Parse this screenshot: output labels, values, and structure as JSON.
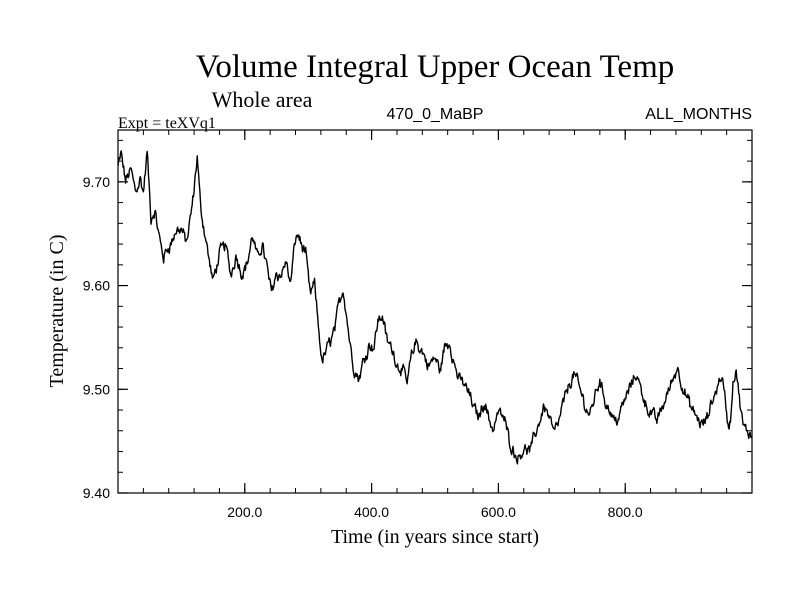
{
  "chart_data": {
    "type": "line",
    "title": "Volume Integral Upper Ocean Temp",
    "subtitle": "Whole area",
    "experiment_label": "Expt = teXVq1",
    "run_label": "470_0_MaBP",
    "months_label": "ALL_MONTHS",
    "xlabel": "Time (in years since start)",
    "ylabel": "Temperature (in C)",
    "xlim": [
      0,
      1000
    ],
    "ylim": [
      9.4,
      9.75
    ],
    "x_ticks": [
      {
        "value": 200,
        "label": "200.0"
      },
      {
        "value": 400,
        "label": "400.0"
      },
      {
        "value": 600,
        "label": "600.0"
      },
      {
        "value": 800,
        "label": "800.0"
      }
    ],
    "y_ticks": [
      {
        "value": 9.4,
        "label": "9.40"
      },
      {
        "value": 9.5,
        "label": "9.50"
      },
      {
        "value": 9.6,
        "label": "9.60"
      },
      {
        "value": 9.7,
        "label": "9.70"
      }
    ],
    "x_minor_step": 40,
    "y_minor_step": 0.02,
    "series": [
      {
        "name": "Volume integral upper ocean temperature",
        "color": "#000000",
        "anchors": [
          [
            0,
            9.715
          ],
          [
            5,
            9.725
          ],
          [
            12,
            9.7
          ],
          [
            20,
            9.712
          ],
          [
            28,
            9.692
          ],
          [
            35,
            9.706
          ],
          [
            40,
            9.69
          ],
          [
            46,
            9.728
          ],
          [
            52,
            9.662
          ],
          [
            58,
            9.67
          ],
          [
            65,
            9.645
          ],
          [
            72,
            9.627
          ],
          [
            80,
            9.638
          ],
          [
            90,
            9.65
          ],
          [
            100,
            9.655
          ],
          [
            108,
            9.642
          ],
          [
            115,
            9.665
          ],
          [
            120,
            9.69
          ],
          [
            125,
            9.722
          ],
          [
            130,
            9.676
          ],
          [
            135,
            9.658
          ],
          [
            140,
            9.64
          ],
          [
            145,
            9.62
          ],
          [
            150,
            9.603
          ],
          [
            160,
            9.63
          ],
          [
            170,
            9.64
          ],
          [
            178,
            9.61
          ],
          [
            186,
            9.632
          ],
          [
            195,
            9.612
          ],
          [
            205,
            9.625
          ],
          [
            212,
            9.648
          ],
          [
            220,
            9.625
          ],
          [
            228,
            9.64
          ],
          [
            235,
            9.618
          ],
          [
            242,
            9.595
          ],
          [
            250,
            9.615
          ],
          [
            258,
            9.61
          ],
          [
            265,
            9.625
          ],
          [
            272,
            9.6
          ],
          [
            280,
            9.645
          ],
          [
            285,
            9.65
          ],
          [
            290,
            9.638
          ],
          [
            296,
            9.63
          ],
          [
            303,
            9.59
          ],
          [
            310,
            9.6
          ],
          [
            316,
            9.56
          ],
          [
            322,
            9.525
          ],
          [
            330,
            9.54
          ],
          [
            336,
            9.548
          ],
          [
            342,
            9.56
          ],
          [
            348,
            9.58
          ],
          [
            355,
            9.598
          ],
          [
            360,
            9.575
          ],
          [
            366,
            9.545
          ],
          [
            372,
            9.52
          ],
          [
            380,
            9.51
          ],
          [
            388,
            9.53
          ],
          [
            396,
            9.545
          ],
          [
            404,
            9.542
          ],
          [
            410,
            9.568
          ],
          [
            418,
            9.57
          ],
          [
            425,
            9.545
          ],
          [
            432,
            9.54
          ],
          [
            440,
            9.525
          ],
          [
            448,
            9.52
          ],
          [
            456,
            9.505
          ],
          [
            462,
            9.53
          ],
          [
            470,
            9.545
          ],
          [
            480,
            9.535
          ],
          [
            490,
            9.522
          ],
          [
            500,
            9.53
          ],
          [
            508,
            9.518
          ],
          [
            515,
            9.54
          ],
          [
            523,
            9.545
          ],
          [
            530,
            9.525
          ],
          [
            538,
            9.51
          ],
          [
            546,
            9.505
          ],
          [
            555,
            9.495
          ],
          [
            562,
            9.48
          ],
          [
            570,
            9.475
          ],
          [
            578,
            9.49
          ],
          [
            585,
            9.472
          ],
          [
            592,
            9.462
          ],
          [
            600,
            9.48
          ],
          [
            610,
            9.47
          ],
          [
            618,
            9.45
          ],
          [
            625,
            9.44
          ],
          [
            632,
            9.435
          ],
          [
            640,
            9.445
          ],
          [
            650,
            9.44
          ],
          [
            658,
            9.455
          ],
          [
            665,
            9.47
          ],
          [
            672,
            9.485
          ],
          [
            680,
            9.475
          ],
          [
            688,
            9.46
          ],
          [
            696,
            9.47
          ],
          [
            705,
            9.492
          ],
          [
            712,
            9.505
          ],
          [
            720,
            9.515
          ],
          [
            728,
            9.5
          ],
          [
            736,
            9.485
          ],
          [
            744,
            9.475
          ],
          [
            752,
            9.495
          ],
          [
            760,
            9.51
          ],
          [
            768,
            9.49
          ],
          [
            776,
            9.48
          ],
          [
            784,
            9.47
          ],
          [
            792,
            9.478
          ],
          [
            800,
            9.49
          ],
          [
            810,
            9.505
          ],
          [
            818,
            9.515
          ],
          [
            826,
            9.498
          ],
          [
            834,
            9.485
          ],
          [
            842,
            9.475
          ],
          [
            850,
            9.47
          ],
          [
            858,
            9.482
          ],
          [
            866,
            9.495
          ],
          [
            874,
            9.508
          ],
          [
            882,
            9.522
          ],
          [
            890,
            9.505
          ],
          [
            898,
            9.49
          ],
          [
            906,
            9.478
          ],
          [
            914,
            9.47
          ],
          [
            922,
            9.465
          ],
          [
            930,
            9.472
          ],
          [
            938,
            9.488
          ],
          [
            946,
            9.505
          ],
          [
            952,
            9.515
          ],
          [
            958,
            9.49
          ],
          [
            962,
            9.465
          ],
          [
            966,
            9.47
          ],
          [
            970,
            9.505
          ],
          [
            975,
            9.52
          ],
          [
            980,
            9.49
          ],
          [
            986,
            9.462
          ],
          [
            992,
            9.458
          ],
          [
            1000,
            9.455
          ]
        ],
        "noise_amplitude": 0.011,
        "resolution_years": 1
      }
    ]
  }
}
